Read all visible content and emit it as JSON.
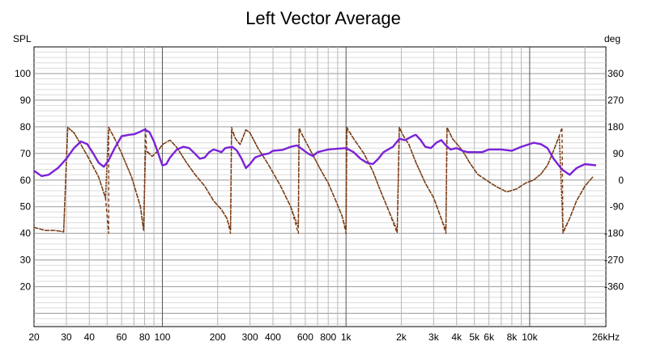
{
  "chart_data": {
    "type": "line",
    "title": "Left Vector Average",
    "y_left_label": "SPL",
    "y_right_label": "deg",
    "x_scale": "log",
    "xlim": [
      20,
      26000
    ],
    "ylim_left": [
      5,
      110
    ],
    "ylim_right": [
      -495,
      450
    ],
    "x_ticks": [
      {
        "value": 20,
        "label": "20"
      },
      {
        "value": 30,
        "label": "30"
      },
      {
        "value": 40,
        "label": "40"
      },
      {
        "value": 60,
        "label": "60"
      },
      {
        "value": 80,
        "label": "80"
      },
      {
        "value": 100,
        "label": "100"
      },
      {
        "value": 200,
        "label": "200"
      },
      {
        "value": 300,
        "label": "300"
      },
      {
        "value": 400,
        "label": "400"
      },
      {
        "value": 600,
        "label": "600"
      },
      {
        "value": 800,
        "label": "800"
      },
      {
        "value": 1000,
        "label": "1k"
      },
      {
        "value": 2000,
        "label": "2k"
      },
      {
        "value": 3000,
        "label": "3k"
      },
      {
        "value": 4000,
        "label": "4k"
      },
      {
        "value": 5000,
        "label": "5k"
      },
      {
        "value": 6000,
        "label": "6k"
      },
      {
        "value": 8000,
        "label": "8k"
      },
      {
        "value": 10000,
        "label": "10k"
      },
      {
        "value": 26000,
        "label": "26kHz"
      }
    ],
    "y_left_ticks": [
      20,
      30,
      40,
      50,
      60,
      70,
      80,
      90,
      100
    ],
    "y_right_ticks": [
      360,
      270,
      180,
      90,
      0,
      -90,
      -180,
      -270,
      -360
    ],
    "series": [
      {
        "name": "SPL",
        "axis": "left",
        "color": "#7b22d8",
        "style": "solid",
        "points": [
          [
            20,
            63.5
          ],
          [
            22,
            61.5
          ],
          [
            24,
            62
          ],
          [
            27,
            64.5
          ],
          [
            30,
            68
          ],
          [
            33,
            72
          ],
          [
            36,
            74.5
          ],
          [
            39,
            73.5
          ],
          [
            42,
            70
          ],
          [
            45,
            66.5
          ],
          [
            48,
            65
          ],
          [
            51,
            67.5
          ],
          [
            55,
            72
          ],
          [
            60,
            76.5
          ],
          [
            66,
            77
          ],
          [
            70,
            77.2
          ],
          [
            75,
            78
          ],
          [
            80,
            79
          ],
          [
            85,
            78
          ],
          [
            90,
            74.5
          ],
          [
            95,
            70
          ],
          [
            100,
            65.5
          ],
          [
            105,
            66
          ],
          [
            110,
            68.5
          ],
          [
            120,
            71.5
          ],
          [
            130,
            72.5
          ],
          [
            140,
            72
          ],
          [
            150,
            70
          ],
          [
            160,
            68
          ],
          [
            170,
            68.5
          ],
          [
            180,
            70.5
          ],
          [
            190,
            71.5
          ],
          [
            200,
            71
          ],
          [
            210,
            70.5
          ],
          [
            220,
            72
          ],
          [
            240,
            72.5
          ],
          [
            255,
            71
          ],
          [
            270,
            68
          ],
          [
            285,
            64.5
          ],
          [
            300,
            66
          ],
          [
            320,
            68.5
          ],
          [
            350,
            69.5
          ],
          [
            380,
            70
          ],
          [
            400,
            71
          ],
          [
            450,
            71.3
          ],
          [
            500,
            72.5
          ],
          [
            540,
            73
          ],
          [
            580,
            71.5
          ],
          [
            620,
            70
          ],
          [
            660,
            69
          ],
          [
            700,
            70.5
          ],
          [
            750,
            71
          ],
          [
            800,
            71.5
          ],
          [
            900,
            71.8
          ],
          [
            1000,
            72
          ],
          [
            1100,
            70.5
          ],
          [
            1200,
            68
          ],
          [
            1300,
            66.5
          ],
          [
            1400,
            66
          ],
          [
            1500,
            68
          ],
          [
            1600,
            70.5
          ],
          [
            1800,
            72.5
          ],
          [
            1950,
            75.5
          ],
          [
            2100,
            75
          ],
          [
            2300,
            76.5
          ],
          [
            2400,
            77
          ],
          [
            2550,
            75
          ],
          [
            2700,
            72.5
          ],
          [
            2900,
            72
          ],
          [
            3100,
            74
          ],
          [
            3300,
            75
          ],
          [
            3500,
            73
          ],
          [
            3700,
            71.5
          ],
          [
            4000,
            72
          ],
          [
            4300,
            71
          ],
          [
            4600,
            70.5
          ],
          [
            5000,
            70.5
          ],
          [
            5500,
            70.5
          ],
          [
            6000,
            71.5
          ],
          [
            7000,
            71.5
          ],
          [
            8000,
            71
          ],
          [
            9000,
            72.5
          ],
          [
            10500,
            74
          ],
          [
            11500,
            73.5
          ],
          [
            12500,
            72
          ],
          [
            13500,
            68
          ],
          [
            15000,
            64
          ],
          [
            16500,
            62
          ],
          [
            18000,
            64.5
          ],
          [
            20000,
            66
          ],
          [
            23000,
            65.5
          ]
        ]
      },
      {
        "name": "Phase (dotted)",
        "axis": "right",
        "color": "#7a3a12",
        "style": "dotted",
        "points": [
          [
            20,
            -160
          ],
          [
            23,
            -170
          ],
          [
            26,
            -170
          ],
          [
            29,
            -175
          ],
          [
            30.5,
            178
          ],
          [
            33,
            160
          ],
          [
            36,
            120
          ],
          [
            40,
            70
          ],
          [
            45,
            10
          ],
          [
            49,
            -60
          ],
          [
            51,
            178
          ],
          [
            55,
            140
          ],
          [
            60,
            90
          ],
          [
            68,
            10
          ],
          [
            76,
            -90
          ],
          [
            79,
            -170
          ],
          [
            81,
            100
          ],
          [
            88,
            80
          ],
          [
            95,
            100
          ],
          [
            100,
            120
          ],
          [
            110,
            135
          ],
          [
            120,
            110
          ],
          [
            135,
            60
          ],
          [
            150,
            20
          ],
          [
            170,
            -20
          ],
          [
            190,
            -70
          ],
          [
            210,
            -100
          ],
          [
            225,
            -130
          ],
          [
            235,
            -170
          ],
          [
            238,
            170
          ],
          [
            250,
            140
          ],
          [
            265,
            120
          ],
          [
            285,
            170
          ],
          [
            300,
            160
          ],
          [
            330,
            110
          ],
          [
            380,
            50
          ],
          [
            440,
            -20
          ],
          [
            500,
            -90
          ],
          [
            550,
            -160
          ],
          [
            555,
            170
          ],
          [
            580,
            150
          ],
          [
            640,
            100
          ],
          [
            720,
            40
          ],
          [
            800,
            -10
          ],
          [
            880,
            -70
          ],
          [
            950,
            -120
          ],
          [
            1000,
            -170
          ],
          [
            1010,
            175
          ],
          [
            1100,
            140
          ],
          [
            1250,
            90
          ],
          [
            1400,
            30
          ],
          [
            1550,
            -40
          ],
          [
            1700,
            -100
          ],
          [
            1900,
            -170
          ],
          [
            1950,
            178
          ],
          [
            2050,
            150
          ],
          [
            2200,
            120
          ],
          [
            2400,
            60
          ],
          [
            2700,
            -10
          ],
          [
            3000,
            -60
          ],
          [
            3300,
            -130
          ],
          [
            3500,
            -170
          ],
          [
            3550,
            178
          ],
          [
            3800,
            140
          ],
          [
            4300,
            100
          ],
          [
            4700,
            60
          ],
          [
            5200,
            20
          ],
          [
            5800,
            0
          ],
          [
            6500,
            -20
          ],
          [
            7500,
            -40
          ],
          [
            8500,
            -30
          ],
          [
            9500,
            -10
          ],
          [
            10500,
            0
          ],
          [
            11500,
            20
          ],
          [
            12500,
            50
          ],
          [
            13500,
            100
          ],
          [
            14500,
            150
          ],
          [
            15200,
            -175
          ],
          [
            16500,
            -130
          ],
          [
            18000,
            -70
          ],
          [
            20000,
            -20
          ],
          [
            22000,
            10
          ]
        ]
      },
      {
        "name": "Phase (dashed)",
        "axis": "right",
        "color": "#7a3a12",
        "style": "dashed",
        "points": [
          [
            20,
            -160
          ],
          [
            23,
            -170
          ],
          [
            26,
            -170
          ],
          [
            29,
            -175
          ],
          [
            30.5,
            178
          ],
          [
            33,
            160
          ],
          [
            36,
            120
          ],
          [
            40,
            70
          ],
          [
            45,
            10
          ],
          [
            49,
            -60
          ],
          [
            51,
            -180
          ],
          [
            51,
            178
          ],
          [
            55,
            140
          ],
          [
            60,
            90
          ],
          [
            68,
            10
          ],
          [
            76,
            -90
          ],
          [
            79,
            -170
          ],
          [
            81,
            178
          ],
          [
            82,
            100
          ],
          [
            88,
            80
          ],
          [
            95,
            100
          ],
          [
            100,
            120
          ],
          [
            110,
            135
          ],
          [
            120,
            110
          ],
          [
            135,
            60
          ],
          [
            150,
            20
          ],
          [
            170,
            -20
          ],
          [
            190,
            -70
          ],
          [
            210,
            -100
          ],
          [
            225,
            -130
          ],
          [
            235,
            -180
          ],
          [
            238,
            178
          ],
          [
            250,
            140
          ],
          [
            265,
            120
          ],
          [
            285,
            170
          ],
          [
            300,
            160
          ],
          [
            330,
            110
          ],
          [
            380,
            50
          ],
          [
            440,
            -20
          ],
          [
            500,
            -90
          ],
          [
            550,
            -180
          ],
          [
            555,
            178
          ],
          [
            580,
            150
          ],
          [
            640,
            100
          ],
          [
            720,
            40
          ],
          [
            800,
            -10
          ],
          [
            880,
            -70
          ],
          [
            950,
            -120
          ],
          [
            1000,
            -180
          ],
          [
            1010,
            178
          ],
          [
            1100,
            140
          ],
          [
            1250,
            90
          ],
          [
            1400,
            30
          ],
          [
            1550,
            -40
          ],
          [
            1700,
            -100
          ],
          [
            1900,
            -180
          ],
          [
            1950,
            178
          ],
          [
            2050,
            150
          ],
          [
            2200,
            120
          ],
          [
            2400,
            60
          ],
          [
            2700,
            -10
          ],
          [
            3000,
            -60
          ],
          [
            3300,
            -130
          ],
          [
            3500,
            -180
          ],
          [
            3550,
            178
          ],
          [
            3800,
            140
          ],
          [
            4300,
            100
          ],
          [
            4700,
            60
          ],
          [
            5200,
            20
          ],
          [
            5800,
            0
          ],
          [
            6500,
            -20
          ],
          [
            7500,
            -40
          ],
          [
            8500,
            -30
          ],
          [
            9500,
            -10
          ],
          [
            10500,
            0
          ],
          [
            11500,
            20
          ],
          [
            12500,
            50
          ],
          [
            13500,
            100
          ],
          [
            14500,
            150
          ],
          [
            15000,
            178
          ],
          [
            15200,
            -180
          ],
          [
            16500,
            -130
          ],
          [
            18000,
            -70
          ],
          [
            20000,
            -20
          ],
          [
            22000,
            10
          ]
        ]
      }
    ]
  }
}
